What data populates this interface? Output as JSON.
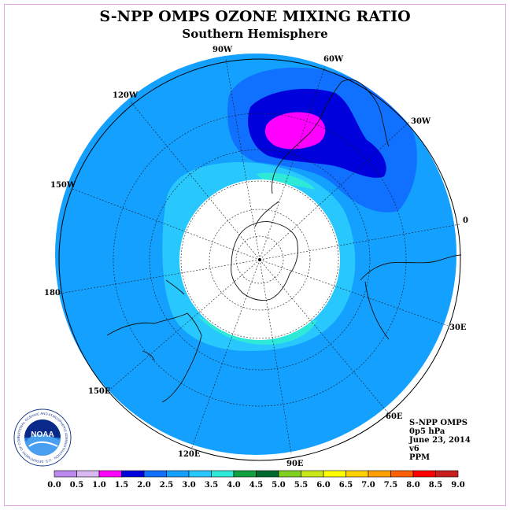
{
  "header": {
    "title": "S-NPP OMPS OZONE MIXING RATIO",
    "subtitle": "Southern Hemisphere"
  },
  "map": {
    "projection": "south polar stereographic",
    "longitude_labels": [
      "90W",
      "60W",
      "30W",
      "0",
      "30E",
      "60E",
      "90E",
      "120E",
      "150E",
      "180",
      "150W",
      "120W"
    ],
    "no_data_center": true
  },
  "info": {
    "lines": [
      "S-NPP OMPS",
      "0p5 hPa",
      "June 23, 2014",
      "v6",
      "PPM"
    ]
  },
  "legend": {
    "ticks": [
      "0.0",
      "0.5",
      "1.0",
      "1.5",
      "2.0",
      "2.5",
      "3.0",
      "3.5",
      "4.0",
      "4.5",
      "5.0",
      "5.5",
      "6.0",
      "6.5",
      "7.0",
      "7.5",
      "8.0",
      "8.5",
      "9.0"
    ],
    "colors": [
      "#bb88ee",
      "#d8b8f0",
      "#ff00ff",
      "#0000dd",
      "#1070ff",
      "#13a0ff",
      "#28c8ff",
      "#2ee8d8",
      "#11a040",
      "#006a30",
      "#7fd020",
      "#c8e81a",
      "#ffff00",
      "#ffd000",
      "#ffa000",
      "#ff6000",
      "#ff0000",
      "#c81e1e",
      "#7a4a30"
    ]
  },
  "colors": {
    "background_field": "#13a0ff",
    "ring_light": "#28c8ff",
    "ring_cyan": "#2ee8d8",
    "high_medium": "#1070ff",
    "high_strong": "#0000dd",
    "high_peak": "#ff00ff",
    "low_green": "#11a040",
    "frame_border": "#e6a6e6"
  },
  "logo": {
    "text": "NOAA",
    "ring_text": "NATIONAL OCEANIC AND ATMOSPHERIC ADMINISTRATION · U.S. DEPARTMENT OF COMMERCE"
  }
}
